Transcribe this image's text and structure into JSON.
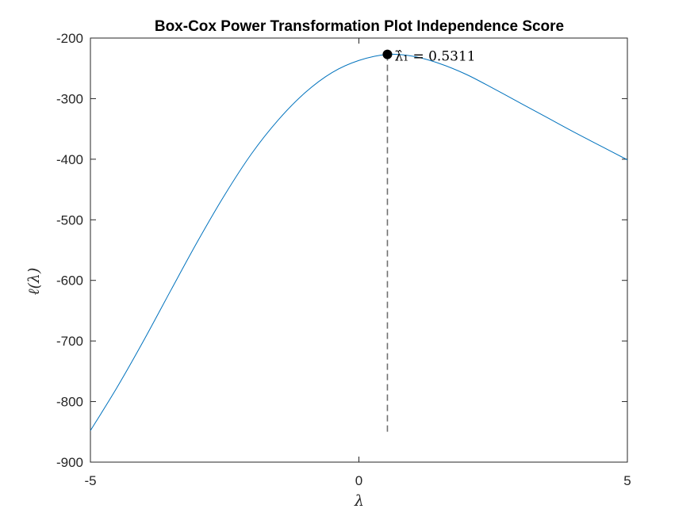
{
  "chart_data": {
    "type": "line",
    "title": "Box-Cox Power Transformation Plot Independence Score",
    "xlabel": "λ",
    "ylabel": "ℓ(λ)",
    "xlim": [
      -5,
      5
    ],
    "ylim": [
      -900,
      -200
    ],
    "xticks": [
      -5,
      0,
      5
    ],
    "yticks": [
      -200,
      -300,
      -400,
      -500,
      -600,
      -700,
      -800,
      -900
    ],
    "xtick_labels": [
      "-5",
      "0",
      "5"
    ],
    "ytick_labels": [
      "-200",
      "-300",
      "-400",
      "-500",
      "-600",
      "-700",
      "-800",
      "-900"
    ],
    "grid": false,
    "line_color": "#0072BD",
    "series": [
      {
        "x": [
          -5,
          -4.5,
          -4,
          -3.5,
          -3,
          -2.5,
          -2,
          -1.5,
          -1,
          -0.5,
          0,
          0.5311,
          1,
          1.5,
          2,
          2.5,
          3,
          3.5,
          4,
          4.5,
          5
        ],
        "values": [
          -848,
          -776,
          -698,
          -616,
          -535,
          -459,
          -391,
          -335,
          -290,
          -257,
          -237,
          -227,
          -230,
          -242,
          -260,
          -283,
          -307,
          -331,
          -355,
          -378,
          -401
        ]
      }
    ],
    "optimum": {
      "x": 0.5311,
      "y": -227,
      "label": "λ̂₁ = 0.5311",
      "drop_line_to_y": -850
    }
  }
}
